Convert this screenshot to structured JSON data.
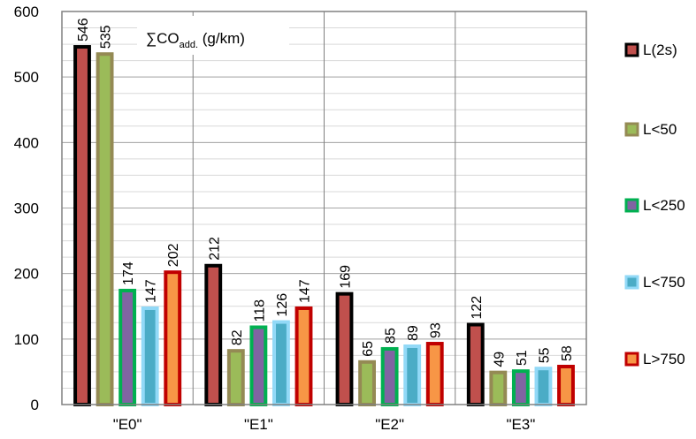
{
  "chart_data": {
    "type": "bar",
    "title_main": "∑CO",
    "title_subscript": "add.",
    "title_unit": " (g/km)",
    "categories": [
      "\"E0\"",
      "\"E1\"",
      "\"E2\"",
      "\"E3\""
    ],
    "ylim": [
      0,
      600
    ],
    "yticks": [
      0,
      100,
      200,
      300,
      400,
      500,
      600
    ],
    "grid": true,
    "legend_position": "right",
    "series": [
      {
        "name": "L(2s)",
        "values": [
          546,
          212,
          169,
          122
        ],
        "outline": "#000000",
        "fill": "#c0504d"
      },
      {
        "name": "L<50",
        "values": [
          535,
          82,
          65,
          49
        ],
        "outline": "#948a54",
        "fill": "#9bbb59"
      },
      {
        "name": "L<250",
        "values": [
          174,
          118,
          85,
          51
        ],
        "outline": "#00b050",
        "fill": "#8064a2"
      },
      {
        "name": "L<750",
        "values": [
          147,
          126,
          89,
          55
        ],
        "outline": "#92d9f7",
        "fill": "#4bacc6"
      },
      {
        "name": "L>750",
        "values": [
          202,
          147,
          93,
          58
        ],
        "outline": "#c00000",
        "fill": "#f79646"
      }
    ]
  }
}
